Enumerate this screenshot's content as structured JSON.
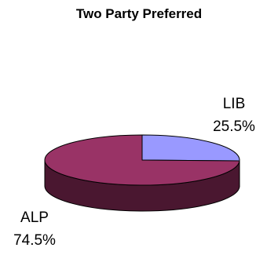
{
  "chart_data": {
    "type": "pie",
    "title": "Two Party Preferred",
    "style": "3d",
    "slices": [
      {
        "label": "LIB",
        "value": 25.5,
        "value_label": "25.5%",
        "color": "#9999ff",
        "side_color": "#4b4b7f"
      },
      {
        "label": "ALP",
        "value": 74.5,
        "value_label": "74.5%",
        "color": "#993366",
        "side_color": "#4a1730"
      }
    ],
    "legend": "none"
  }
}
